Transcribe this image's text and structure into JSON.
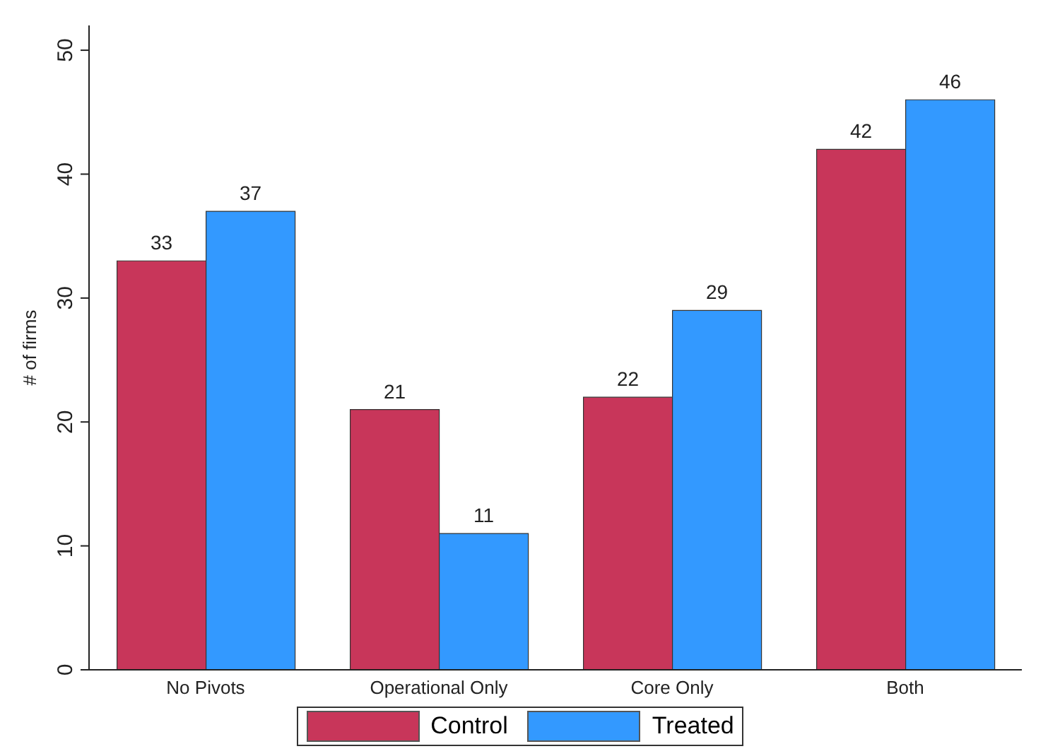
{
  "chart_data": {
    "type": "bar",
    "ylabel": "# of firms",
    "categories": [
      "No Pivots",
      "Operational Only",
      "Core Only",
      "Both"
    ],
    "series": [
      {
        "name": "Control",
        "color": "#c8365a",
        "values": [
          33,
          21,
          22,
          42
        ]
      },
      {
        "name": "Treated",
        "color": "#3399ff",
        "values": [
          37,
          11,
          29,
          46
        ]
      }
    ],
    "ylim": [
      0,
      52
    ],
    "yticks": [
      0,
      10,
      20,
      30,
      40,
      50
    ],
    "data_labels": true,
    "grid": false,
    "legend": "bottom"
  }
}
